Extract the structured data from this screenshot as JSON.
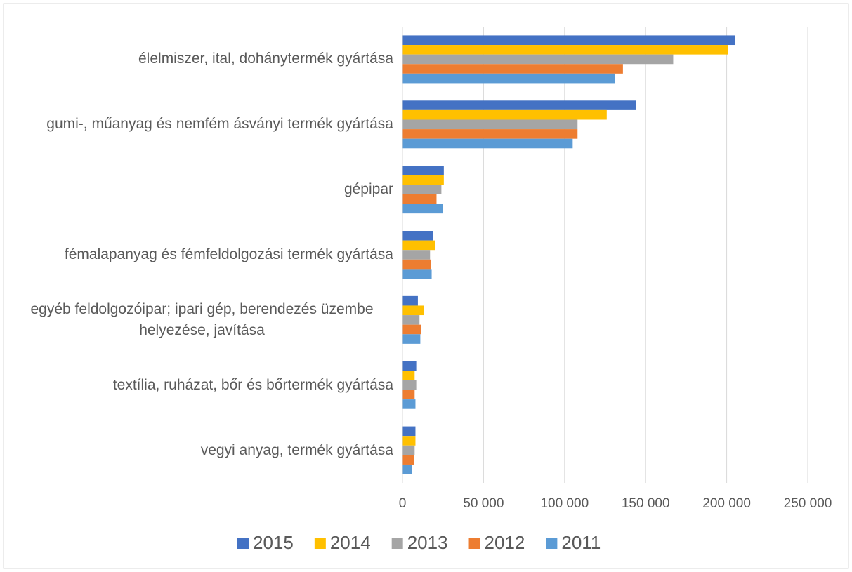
{
  "chart_data": {
    "type": "barh",
    "categories": [
      "élelmiszer, ital, dohánytermék gyártása",
      "gumi-, műanyag és nemfém ásványi termék gyártása",
      "gépipar",
      "fémalapanyag és fémfeldolgozási termék gyártása",
      "egyéb feldolgozóipar; ipari gép, berendezés üzembe helyezése, javítása",
      "textília, ruházat, bőr és bőrtermék gyártása",
      "vegyi anyag, termék gyártása"
    ],
    "series": [
      {
        "name": "2015",
        "color": "#4472c4",
        "values": [
          205000,
          144000,
          25500,
          19000,
          9500,
          8500,
          8000
        ]
      },
      {
        "name": "2014",
        "color": "#ffc000",
        "values": [
          201000,
          126000,
          25500,
          20000,
          13000,
          7500,
          8000
        ]
      },
      {
        "name": "2013",
        "color": "#a5a5a5",
        "values": [
          167000,
          108000,
          24000,
          17000,
          10500,
          8500,
          7500
        ]
      },
      {
        "name": "2012",
        "color": "#ed7d31",
        "values": [
          136000,
          108000,
          21000,
          17500,
          11500,
          7500,
          7000
        ]
      },
      {
        "name": "2011",
        "color": "#5b9bd5",
        "values": [
          131000,
          105000,
          25000,
          18000,
          11000,
          8000,
          6000
        ]
      }
    ],
    "xlim": [
      0,
      250000
    ],
    "xticks": [
      0,
      {
        "value": 50000,
        "label": "50 000"
      },
      {
        "value": 100000,
        "label": "100 000"
      },
      {
        "value": 150000,
        "label": "150 000"
      },
      {
        "value": 200000,
        "label": "200 000"
      },
      {
        "value": 250000,
        "label": "250 000"
      }
    ],
    "grid": true,
    "legend": "bottom"
  }
}
